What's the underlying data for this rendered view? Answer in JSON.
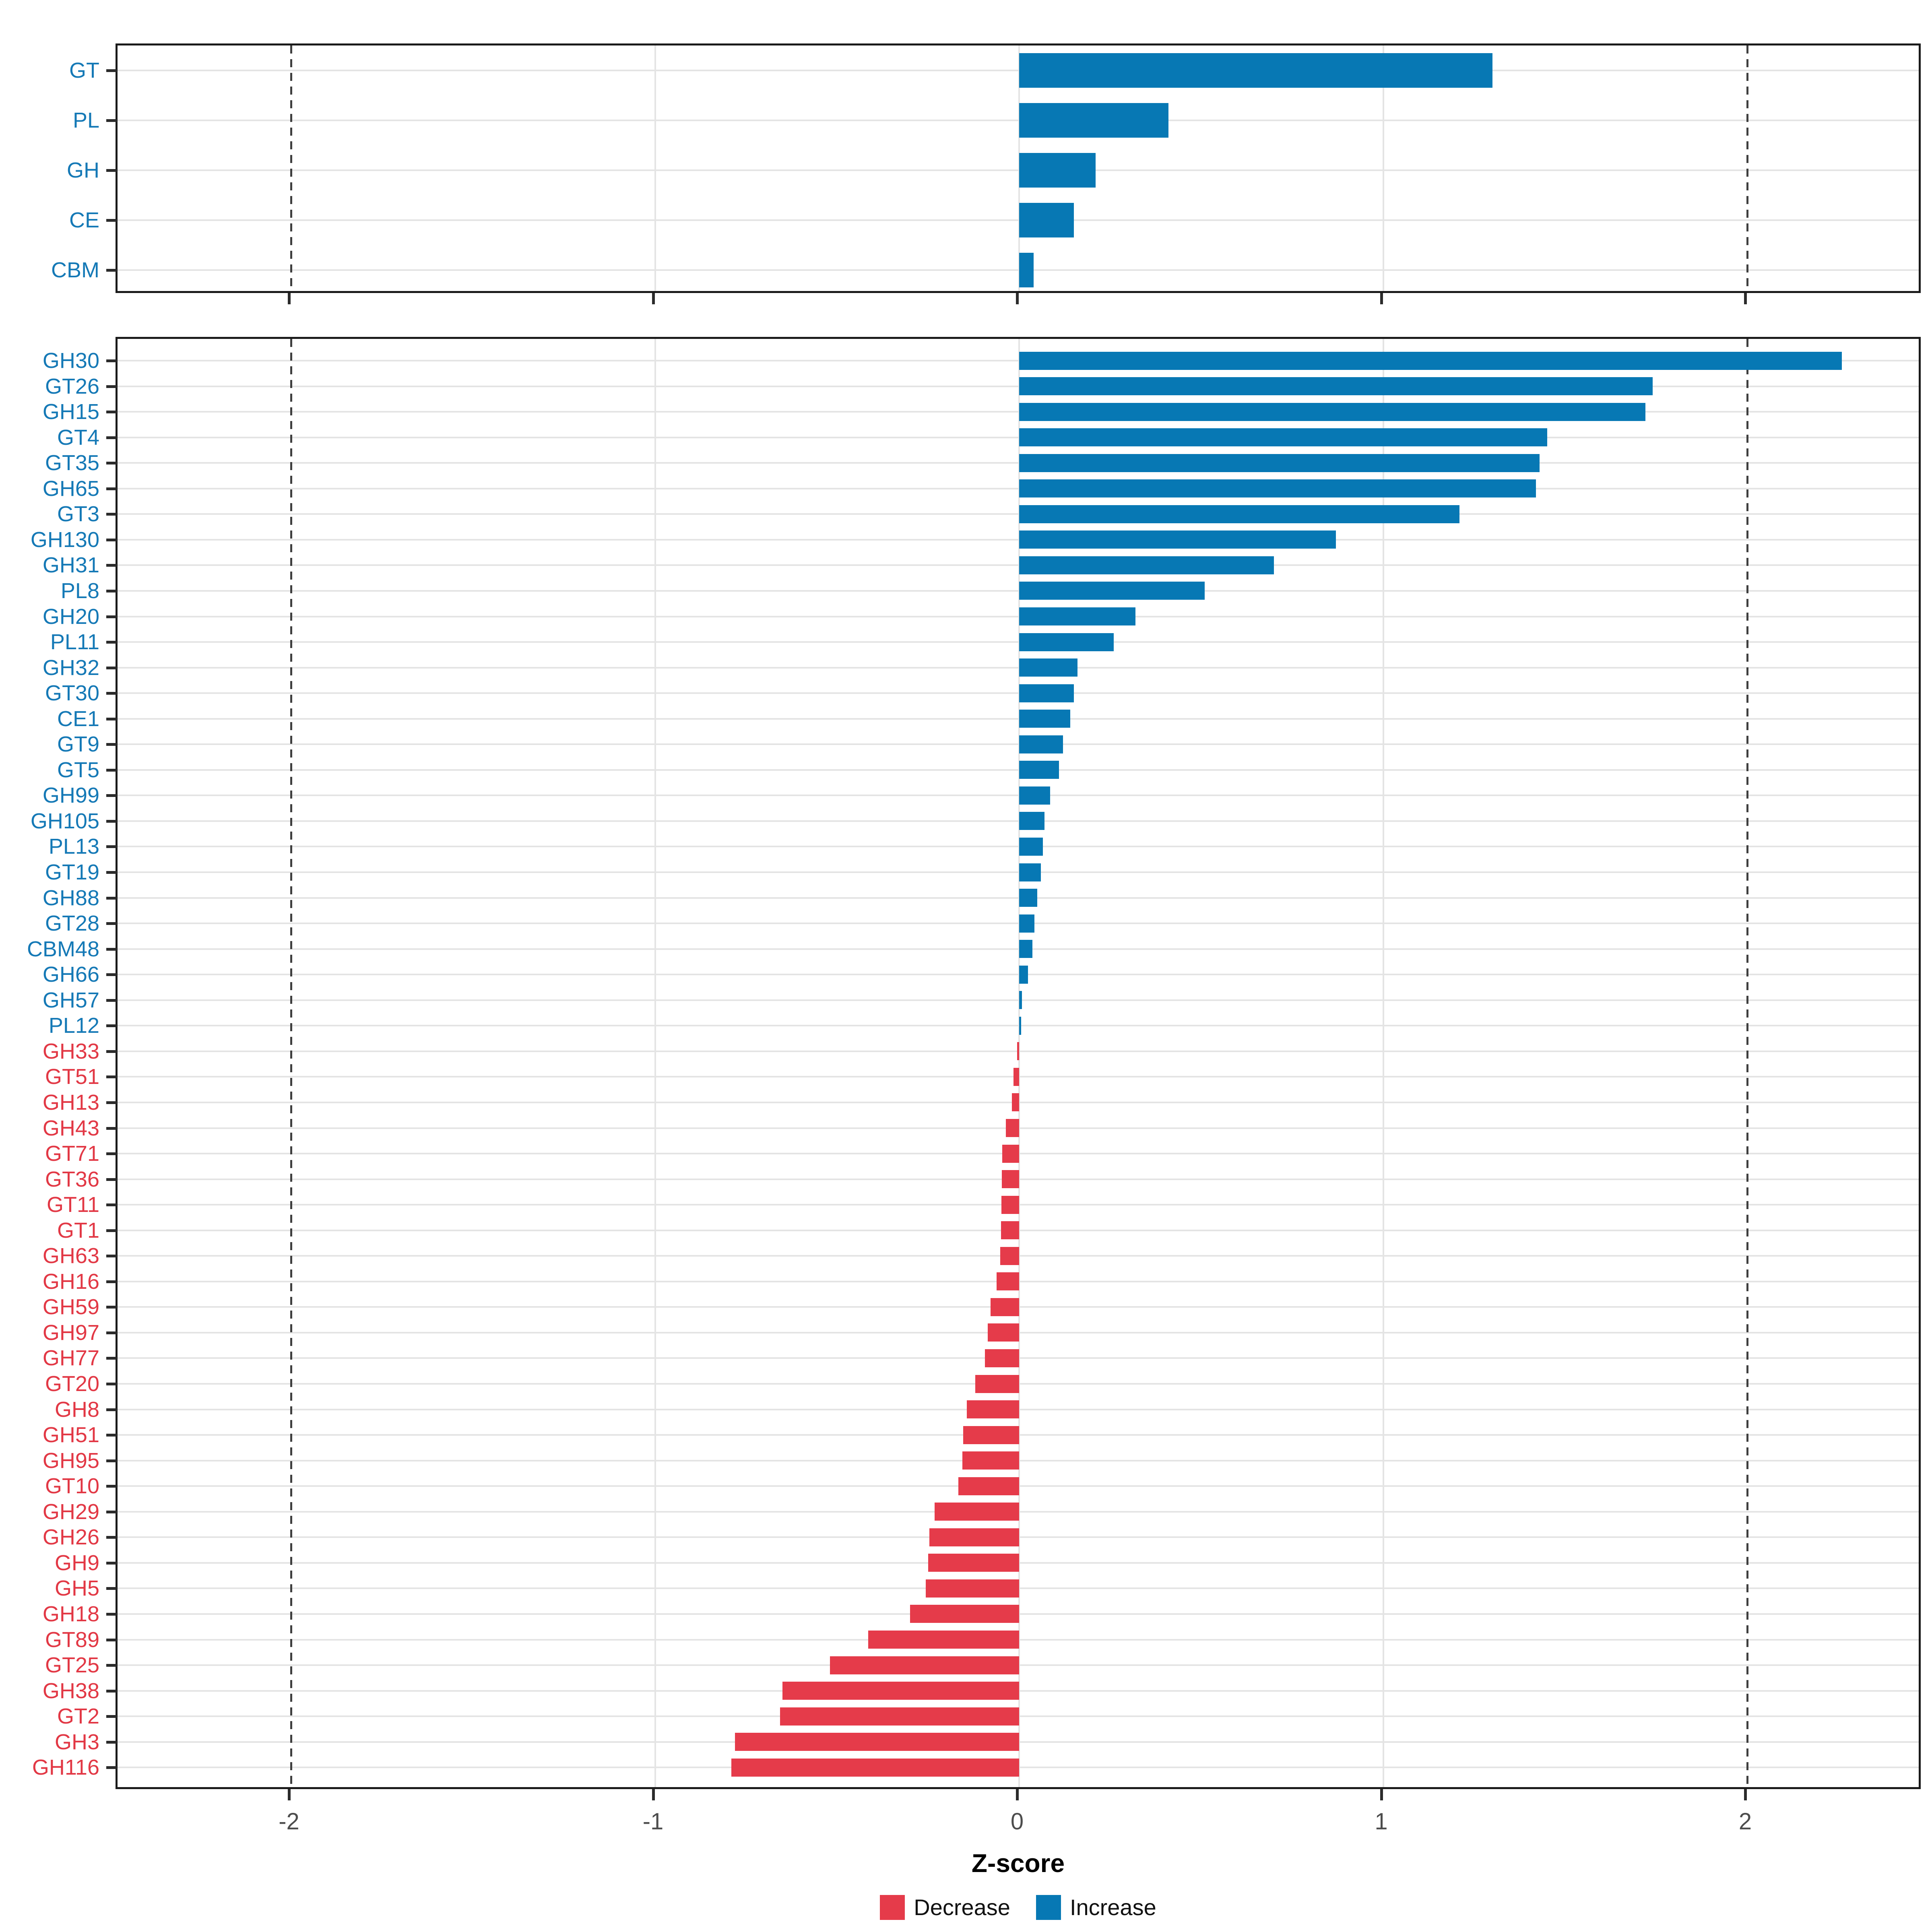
{
  "axis": {
    "title": "Z-score",
    "ticks": [
      -2,
      -1,
      0,
      1,
      2
    ],
    "xlim": [
      -2.48,
      2.48
    ],
    "dashed_guides": [
      -2,
      2
    ],
    "grid": true,
    "legend_position": "bottom"
  },
  "legend": {
    "decrease_label": "Decrease",
    "increase_label": "Increase"
  },
  "colors": {
    "increase": "#0778b4",
    "decrease": "#e53b4a",
    "label_increase": "#1579b6",
    "label_decrease": "#e23845",
    "axis_text": "#4d4d4d",
    "grid": "#e4e4e4",
    "dashed": "#3f3f3f",
    "border": "#1a1a1a"
  },
  "chart_data": [
    {
      "type": "bar",
      "orientation": "horizontal",
      "panel": "enzyme-class-summary",
      "xlabel": "Z-score",
      "categories": [
        "GT",
        "PL",
        "GH",
        "CE",
        "CBM"
      ],
      "values": [
        1.3,
        0.41,
        0.21,
        0.15,
        0.04
      ],
      "directions": [
        "increase",
        "increase",
        "increase",
        "increase",
        "increase"
      ]
    },
    {
      "type": "bar",
      "orientation": "horizontal",
      "panel": "enzyme-family-detail",
      "xlabel": "Z-score",
      "categories": [
        "GH30",
        "GT26",
        "GH15",
        "GT4",
        "GT35",
        "GH65",
        "GT3",
        "GH130",
        "GH31",
        "PL8",
        "GH20",
        "PL11",
        "GH32",
        "GT30",
        "CE1",
        "GT9",
        "GT5",
        "GH99",
        "GH105",
        "PL13",
        "GT19",
        "GH88",
        "GT28",
        "CBM48",
        "GH66",
        "GH57",
        "PL12",
        "GH33",
        "GT51",
        "GH13",
        "GH43",
        "GT71",
        "GT36",
        "GT11",
        "GT1",
        "GH63",
        "GH16",
        "GH59",
        "GH97",
        "GH77",
        "GT20",
        "GH8",
        "GH51",
        "GH95",
        "GT10",
        "GH29",
        "GH26",
        "GH9",
        "GH5",
        "GH18",
        "GT89",
        "GT25",
        "GH38",
        "GT2",
        "GH3",
        "GH116"
      ],
      "values": [
        2.26,
        1.74,
        1.72,
        1.45,
        1.43,
        1.42,
        1.21,
        0.87,
        0.7,
        0.51,
        0.32,
        0.26,
        0.16,
        0.15,
        0.14,
        0.12,
        0.11,
        0.085,
        0.07,
        0.065,
        0.06,
        0.05,
        0.042,
        0.036,
        0.024,
        0.008,
        0.005,
        -0.005,
        -0.016,
        -0.02,
        -0.036,
        -0.046,
        -0.048,
        -0.049,
        -0.05,
        -0.052,
        -0.062,
        -0.078,
        -0.086,
        -0.094,
        -0.12,
        -0.144,
        -0.154,
        -0.156,
        -0.167,
        -0.232,
        -0.246,
        -0.25,
        -0.256,
        -0.3,
        -0.415,
        -0.52,
        -0.65,
        -0.657,
        -0.78,
        -0.79
      ]
    }
  ]
}
